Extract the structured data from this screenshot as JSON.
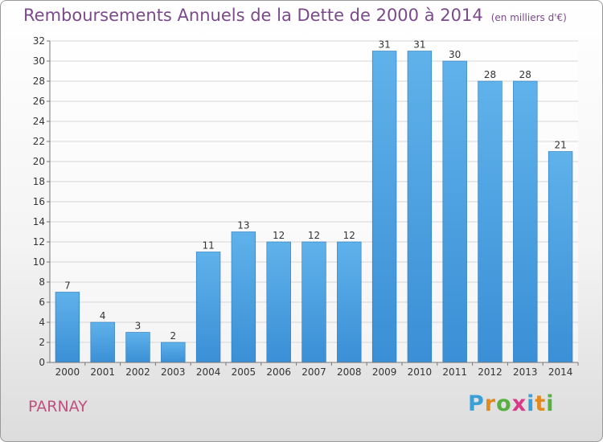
{
  "chart_data": {
    "type": "bar",
    "title": "Remboursements Annuels de la Dette de 2000 à 2014",
    "subtitle": "(en milliers d'€)",
    "categories": [
      "2000",
      "2001",
      "2002",
      "2003",
      "2004",
      "2005",
      "2006",
      "2007",
      "2008",
      "2009",
      "2010",
      "2011",
      "2012",
      "2013",
      "2014"
    ],
    "values": [
      7,
      4,
      3,
      2,
      11,
      13,
      12,
      12,
      12,
      31,
      31,
      30,
      28,
      28,
      21
    ],
    "ylim": [
      0,
      32
    ],
    "yticks": [
      0,
      2,
      4,
      6,
      8,
      10,
      12,
      14,
      16,
      18,
      20,
      22,
      24,
      26,
      28,
      30,
      32
    ],
    "grid": true,
    "bar_color": "#3a8fd6",
    "legend": "none"
  },
  "place_name": "PARNAY",
  "logo": {
    "text": "Proxiti",
    "letters": [
      {
        "ch": "P",
        "color": "#3aa0d8"
      },
      {
        "ch": "r",
        "color": "#e08a20"
      },
      {
        "ch": "o",
        "color": "#58b040"
      },
      {
        "ch": "x",
        "color": "#d83a8a"
      },
      {
        "ch": "i",
        "color": "#3aa0d8"
      },
      {
        "ch": "t",
        "color": "#e08a20"
      },
      {
        "ch": "i",
        "color": "#58b040"
      }
    ]
  }
}
